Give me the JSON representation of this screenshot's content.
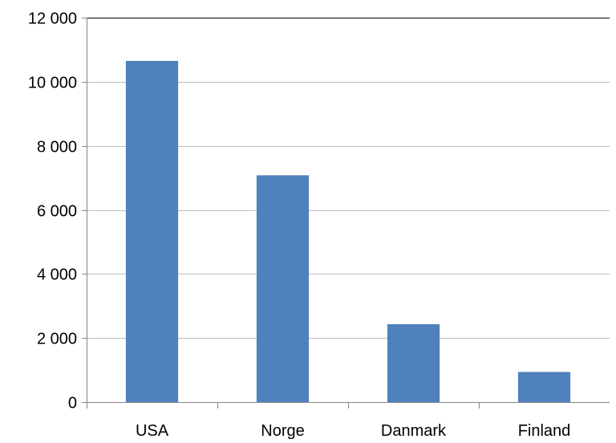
{
  "chart_data": {
    "type": "bar",
    "categories": [
      "USA",
      "Norge",
      "Danmark",
      "Finland"
    ],
    "values": [
      10650,
      7080,
      2430,
      940
    ],
    "ylim": [
      0,
      12000
    ],
    "yticks": [
      0,
      2000,
      4000,
      6000,
      8000,
      10000,
      12000
    ],
    "ytick_labels": [
      "0",
      "2 000",
      "4 000",
      "6 000",
      "8 000",
      "10 000",
      "12 000"
    ],
    "grid": true,
    "legend": "none",
    "title": "",
    "xlabel": "",
    "ylabel": "",
    "colors": {
      "bar": "#4F81BD",
      "grid": "#BFBFBF",
      "axis": "#868686",
      "frame": "#000000"
    }
  }
}
